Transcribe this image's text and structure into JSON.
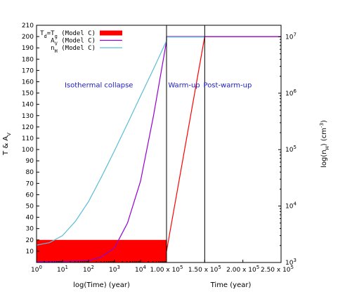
{
  "chart_data": {
    "type": "line",
    "panels": [
      {
        "name": "left",
        "x_scale": "log",
        "xlabel": "log(Time) (year)",
        "xlim": [
          1,
          100000
        ],
        "x_ticks": [
          {
            "value": 1,
            "label": "10",
            "sup": "0"
          },
          {
            "value": 10,
            "label": "10",
            "sup": "1"
          },
          {
            "value": 100,
            "label": "10",
            "sup": "2"
          },
          {
            "value": 1000,
            "label": "10",
            "sup": "3"
          },
          {
            "value": 10000,
            "label": "10",
            "sup": "4"
          }
        ]
      },
      {
        "name": "right",
        "x_scale": "linear",
        "xlabel": "Time (year)",
        "xlim": [
          100000,
          250000
        ],
        "x_ticks": [
          {
            "value": 100000,
            "label": "1.00 x 10",
            "sup": "5"
          },
          {
            "value": 150000,
            "label": "1.50 x 10",
            "sup": "5"
          },
          {
            "value": 200000,
            "label": "2.00 x 10",
            "sup": "5"
          },
          {
            "value": 250000,
            "label": "2.50 x 10",
            "sup": "5"
          }
        ]
      }
    ],
    "y_axis": {
      "label": "T & A",
      "label_sub": "V",
      "ylim": [
        0,
        210
      ],
      "ticks": [
        10,
        20,
        30,
        40,
        50,
        60,
        70,
        80,
        90,
        100,
        110,
        120,
        130,
        140,
        150,
        160,
        170,
        180,
        190,
        200,
        210
      ]
    },
    "y2_axis": {
      "label": "log(n",
      "label_sub": "H",
      "label_tail": ") (cm",
      "label_sup": "-3",
      "label_end": ")",
      "scale": "log",
      "ylim": [
        1000,
        16000000
      ],
      "ticks": [
        {
          "value": 1000,
          "label": "10",
          "sup": "3"
        },
        {
          "value": 10000,
          "label": "10",
          "sup": "4"
        },
        {
          "value": 100000,
          "label": "10",
          "sup": "5"
        },
        {
          "value": 1000000,
          "label": "10",
          "sup": "6"
        },
        {
          "value": 10000000,
          "label": "10",
          "sup": "7"
        }
      ]
    },
    "grid": false,
    "legend_position": "top-left",
    "series": [
      {
        "name": "Td=Tg (Model C)",
        "legend": {
          "pre": "T",
          "pre_sub": "d",
          "mid": "=T",
          "mid_sub": "g",
          "post": " (Model C)"
        },
        "color": "#ff0000",
        "axis": "left",
        "band": {
          "x_range": [
            1,
            100000
          ],
          "y_range": [
            0,
            20
          ]
        },
        "points": [
          [
            100000,
            10
          ],
          [
            150000,
            200
          ],
          [
            250000,
            200
          ]
        ]
      },
      {
        "name": "AV (Model C)",
        "legend": {
          "pre": "A",
          "pre_sub": "V",
          "post": " (Model C)"
        },
        "color": "#9400d3",
        "axis": "left",
        "points": [
          [
            1,
            0.5
          ],
          [
            100,
            1.5
          ],
          [
            316,
            5
          ],
          [
            1000,
            13
          ],
          [
            3162,
            35
          ],
          [
            10000,
            72
          ],
          [
            31623,
            130
          ],
          [
            100000,
            196
          ],
          [
            100000,
            200
          ],
          [
            150000,
            200
          ],
          [
            250000,
            200
          ]
        ]
      },
      {
        "name": "nH (Model C)",
        "legend": {
          "pre": "n",
          "pre_sub": "H",
          "post": " (Model C)"
        },
        "color": "#5bbcd6",
        "axis": "right",
        "points": [
          [
            1,
            2030
          ],
          [
            3.16,
            2250
          ],
          [
            10,
            3000
          ],
          [
            31.6,
            5400
          ],
          [
            100,
            12000
          ],
          [
            316,
            33000
          ],
          [
            1000,
            96000
          ],
          [
            3162,
            290000
          ],
          [
            10000,
            890000
          ],
          [
            31623,
            2700000
          ],
          [
            100000,
            8500000
          ],
          [
            100000,
            9900000
          ],
          [
            150000,
            9900000
          ]
        ]
      }
    ],
    "vertical_lines": [
      100000,
      150000
    ],
    "annotations": [
      {
        "text": "Isothermal collapse",
        "x": 250,
        "y": 155
      },
      {
        "text": "Warm-up",
        "x": 123000,
        "y": 155
      },
      {
        "text": "Post-warm-up",
        "x": 180000,
        "y": 155
      }
    ]
  }
}
